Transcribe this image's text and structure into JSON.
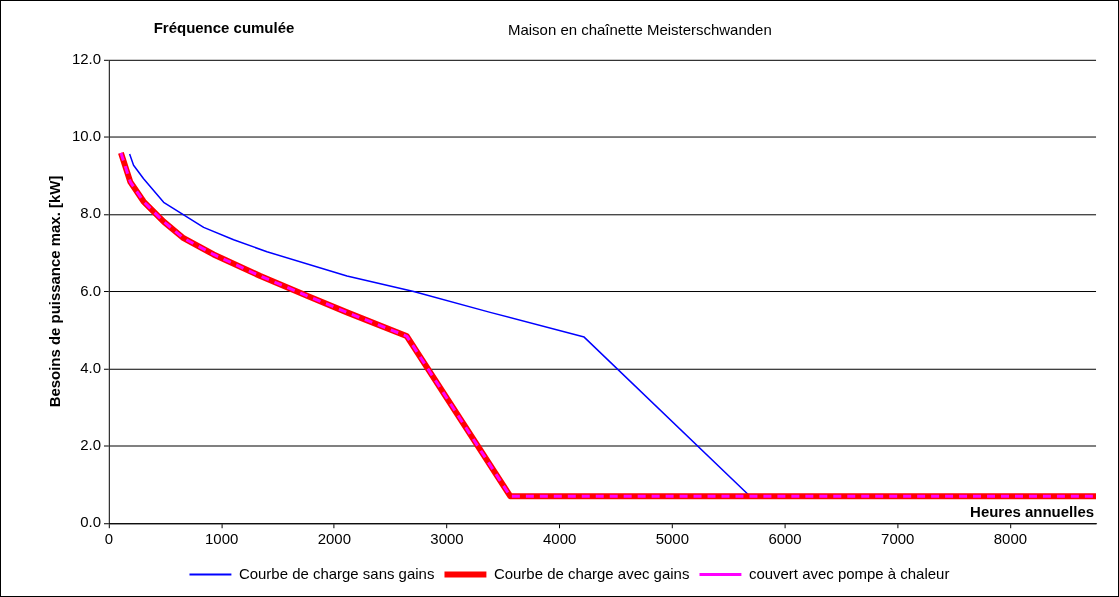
{
  "chart_data": {
    "type": "line",
    "title": "Maison en chaînette Meisterschwanden",
    "xlabel": "Heures annuelles",
    "ylabel": "Besoins de puissance max. [kW]",
    "annotations": [
      "Fréquence cumulée"
    ],
    "xlim": [
      0,
      8760
    ],
    "xticks": [
      0,
      1000,
      2000,
      3000,
      4000,
      5000,
      6000,
      7000,
      8000
    ],
    "ylim": [
      0,
      12
    ],
    "yticks": [
      {
        "value": 0,
        "label": "0.0"
      },
      {
        "value": 2,
        "label": "2.0"
      },
      {
        "value": 4,
        "label": "4.0"
      },
      {
        "value": 6,
        "label": "6.0"
      },
      {
        "value": 8,
        "label": "8.0"
      },
      {
        "value": 10,
        "label": "10.0"
      },
      {
        "value": 12,
        "label": "12.0"
      }
    ],
    "grid": "y",
    "legend": "bottom",
    "marker": "none",
    "series": [
      {
        "name": "Courbe de charge sans gains",
        "color": "#0000ff",
        "line_style": "solid",
        "x": [
          183,
          218,
          307,
          485,
          840,
          1106,
          1402,
          2112,
          2704,
          3383,
          4217,
          5675
        ],
        "values": [
          9.56,
          9.27,
          8.92,
          8.31,
          7.66,
          7.34,
          7.03,
          6.4,
          6.0,
          5.46,
          4.82,
          0.74
        ]
      },
      {
        "name": "Courbe de charge avec gains",
        "color": "#ff0000",
        "line_style": "solid",
        "x": [
          106,
          189,
          307,
          485,
          662,
          928,
          1343,
          1757,
          2112,
          2629,
          2644,
          3561,
          8760
        ],
        "values": [
          9.59,
          8.84,
          8.33,
          7.81,
          7.38,
          6.96,
          6.4,
          5.89,
          5.46,
          4.86,
          4.84,
          0.7,
          0.7
        ]
      },
      {
        "name": "couvert avec pompe à chaleur",
        "color": "#ff00ff",
        "line_style": "dashed",
        "x": [
          106,
          189,
          307,
          485,
          662,
          928,
          1343,
          1757,
          2112,
          2629,
          2644,
          3561,
          8760
        ],
        "values": [
          9.59,
          8.84,
          8.33,
          7.81,
          7.38,
          6.96,
          6.4,
          5.89,
          5.46,
          4.86,
          4.84,
          0.7,
          0.7
        ]
      }
    ]
  }
}
